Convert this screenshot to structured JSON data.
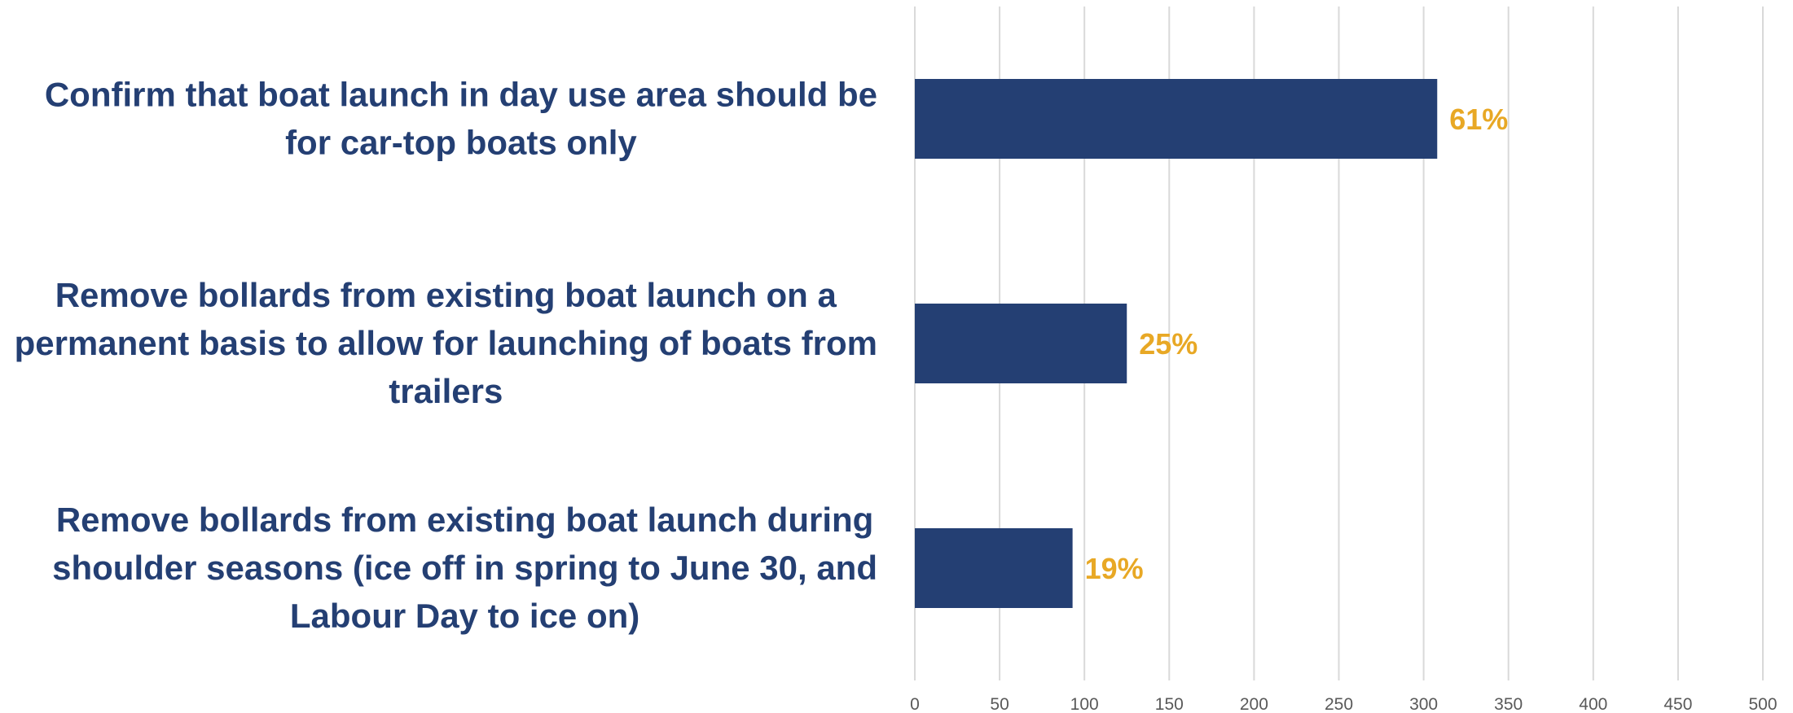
{
  "chart_data": {
    "type": "bar",
    "orientation": "horizontal",
    "categories": [
      [
        "Confirm that boat launch in day use area should be",
        "for car-top boats only"
      ],
      [
        "Remove bollards from existing boat launch on a",
        "permanent basis to allow for launching of boats from",
        "trailers"
      ],
      [
        "Remove bollards from existing boat launch during",
        "shoulder seasons (ice off in spring to June 30, and",
        "Labour Day to ice on)"
      ]
    ],
    "values": [
      308,
      125,
      93
    ],
    "data_labels": [
      "61%",
      "25%",
      "19%"
    ],
    "x_ticks": [
      "0",
      "50",
      "100",
      "150",
      "200",
      "250",
      "300",
      "350",
      "400",
      "450",
      "500"
    ],
    "xlim": [
      0,
      500
    ],
    "grid": true,
    "legend": "none",
    "colors": {
      "bar": "#243f73",
      "category_text": "#243f73",
      "data_label": "#e8a825",
      "gridline": "#d9d9d9",
      "tick_text": "#595959"
    }
  }
}
